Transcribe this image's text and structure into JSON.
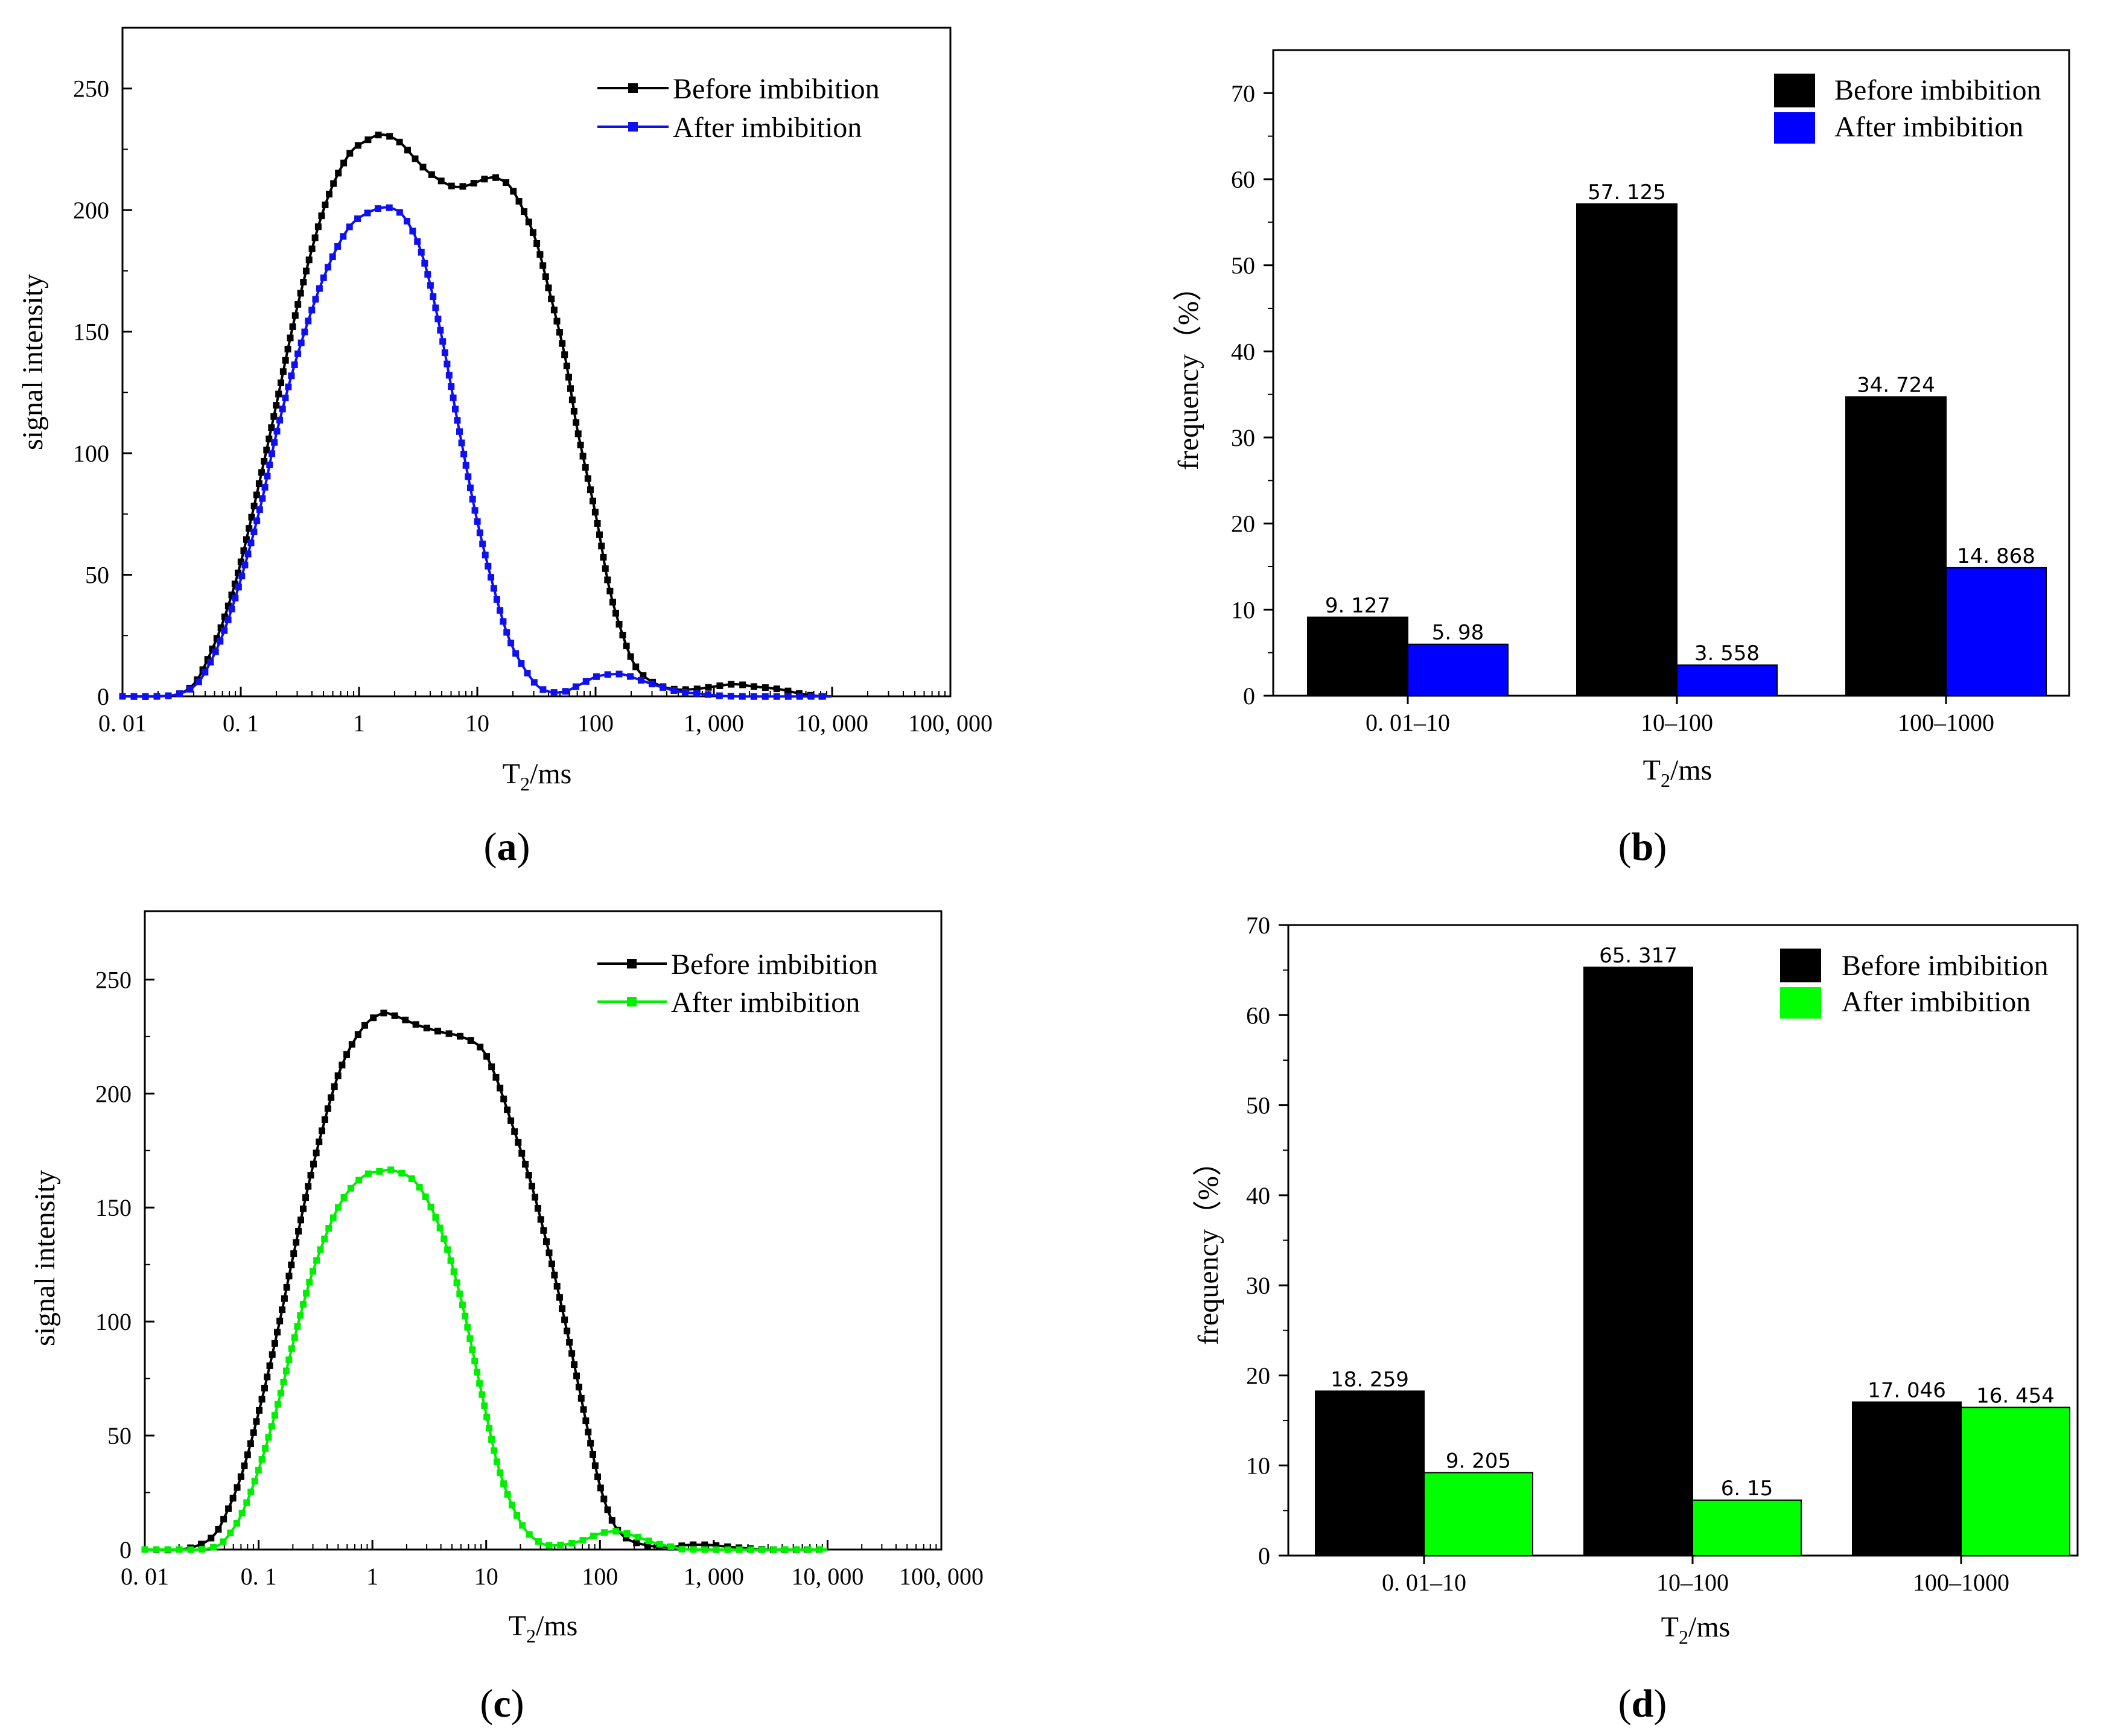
{
  "chart_data": [
    {
      "id": "a",
      "type": "line",
      "caption": "a",
      "xlabel_main": "T",
      "xlabel_sub": "2",
      "xlabel_unit": "/ms",
      "ylabel": "signal intensity",
      "xscale": "log",
      "xlim": [
        0.01,
        100000
      ],
      "ylim": [
        0,
        275
      ],
      "xticks": [
        {
          "v": 0.01,
          "label": "0. 01"
        },
        {
          "v": 0.1,
          "label": "0. 1"
        },
        {
          "v": 1,
          "label": "1"
        },
        {
          "v": 10,
          "label": "10"
        },
        {
          "v": 100,
          "label": "100"
        },
        {
          "v": 1000,
          "label": "1, 000"
        },
        {
          "v": 10000,
          "label": "10, 000"
        },
        {
          "v": 100000,
          "label": "100, 000"
        }
      ],
      "yticks": [
        0,
        50,
        100,
        150,
        200,
        250
      ],
      "legend": [
        "Before imbibition",
        "After  imbibition"
      ],
      "series": [
        {
          "name": "Before imbibition",
          "color": "#000000",
          "points": [
            [
              0.01,
              0
            ],
            [
              0.02,
              0
            ],
            [
              0.03,
              1
            ],
            [
              0.04,
              5
            ],
            [
              0.05,
              13
            ],
            [
              0.07,
              30
            ],
            [
              0.1,
              55
            ],
            [
              0.15,
              92
            ],
            [
              0.2,
              120
            ],
            [
              0.3,
              160
            ],
            [
              0.5,
              200
            ],
            [
              0.8,
              222
            ],
            [
              1.2,
              229
            ],
            [
              1.6,
              231
            ],
            [
              2.2,
              228
            ],
            [
              3,
              221
            ],
            [
              4,
              215
            ],
            [
              6,
              210
            ],
            [
              8,
              210
            ],
            [
              12,
              213
            ],
            [
              15,
              213
            ],
            [
              20,
              208
            ],
            [
              30,
              190
            ],
            [
              40,
              168
            ],
            [
              55,
              140
            ],
            [
              70,
              110
            ],
            [
              100,
              75
            ],
            [
              130,
              45
            ],
            [
              170,
              25
            ],
            [
              220,
              12
            ],
            [
              300,
              6
            ],
            [
              450,
              3
            ],
            [
              700,
              3
            ],
            [
              1000,
              4
            ],
            [
              1500,
              5
            ],
            [
              2200,
              4
            ],
            [
              3500,
              3
            ],
            [
              5500,
              1
            ],
            [
              8000,
              0
            ],
            [
              10000,
              0
            ]
          ]
        },
        {
          "name": "After  imbibition",
          "color": "#1010ee",
          "points": [
            [
              0.01,
              0
            ],
            [
              0.02,
              0
            ],
            [
              0.03,
              1
            ],
            [
              0.04,
              4
            ],
            [
              0.05,
              10
            ],
            [
              0.07,
              25
            ],
            [
              0.1,
              48
            ],
            [
              0.15,
              80
            ],
            [
              0.2,
              108
            ],
            [
              0.3,
              140
            ],
            [
              0.5,
              172
            ],
            [
              0.8,
              192
            ],
            [
              1.2,
              199
            ],
            [
              1.8,
              201
            ],
            [
              2.5,
              196
            ],
            [
              3.5,
              180
            ],
            [
              5,
              148
            ],
            [
              7,
              110
            ],
            [
              10,
              72
            ],
            [
              15,
              38
            ],
            [
              20,
              20
            ],
            [
              30,
              6
            ],
            [
              40,
              2
            ],
            [
              55,
              2
            ],
            [
              75,
              5
            ],
            [
              100,
              8
            ],
            [
              130,
              9
            ],
            [
              170,
              9
            ],
            [
              230,
              7
            ],
            [
              350,
              4
            ],
            [
              500,
              2
            ],
            [
              800,
              1
            ],
            [
              1500,
              0
            ],
            [
              10000,
              0
            ]
          ]
        }
      ]
    },
    {
      "id": "b",
      "type": "bar",
      "caption": "b",
      "xlabel_main": "T",
      "xlabel_sub": "2",
      "xlabel_unit": "/ms",
      "ylabel": "frequency（%）",
      "ylim": [
        0,
        75
      ],
      "yticks": [
        0,
        10,
        20,
        30,
        40,
        50,
        60,
        70
      ],
      "categories": [
        "0. 01–10",
        "10–100",
        "100–1000"
      ],
      "legend": [
        "Before imbibition",
        "After  imbibition"
      ],
      "series": [
        {
          "name": "Before imbibition",
          "color": "#000000",
          "values": [
            9.127,
            57.125,
            34.724
          ],
          "labels": [
            "9. 127",
            "57. 125",
            "34. 724"
          ]
        },
        {
          "name": "After  imbibition",
          "color": "#0000ff",
          "values": [
            5.98,
            3.558,
            14.868
          ],
          "labels": [
            "5. 98",
            "3. 558",
            "14. 868"
          ]
        }
      ]
    },
    {
      "id": "c",
      "type": "line",
      "caption": "c",
      "xlabel_main": "T",
      "xlabel_sub": "2",
      "xlabel_unit": "/ms",
      "ylabel": "signal intensity",
      "xscale": "log",
      "xlim": [
        0.01,
        100000
      ],
      "ylim": [
        0,
        280
      ],
      "xticks": [
        {
          "v": 0.01,
          "label": "0. 01"
        },
        {
          "v": 0.1,
          "label": "0. 1"
        },
        {
          "v": 1,
          "label": "1"
        },
        {
          "v": 10,
          "label": "10"
        },
        {
          "v": 100,
          "label": "100"
        },
        {
          "v": 1000,
          "label": "1, 000"
        },
        {
          "v": 10000,
          "label": "10, 000"
        },
        {
          "v": 100000,
          "label": "100, 000"
        }
      ],
      "yticks": [
        0,
        50,
        100,
        150,
        200,
        250
      ],
      "legend": [
        "Before imbibition",
        "After  imbibition"
      ],
      "series": [
        {
          "name": "Before imbibition",
          "color": "#000000",
          "points": [
            [
              0.01,
              0
            ],
            [
              0.02,
              0
            ],
            [
              0.03,
              2
            ],
            [
              0.04,
              6
            ],
            [
              0.05,
              14
            ],
            [
              0.07,
              32
            ],
            [
              0.1,
              60
            ],
            [
              0.15,
              98
            ],
            [
              0.2,
              128
            ],
            [
              0.3,
              168
            ],
            [
              0.5,
              208
            ],
            [
              0.8,
              228
            ],
            [
              1.2,
              235
            ],
            [
              1.6,
              234
            ],
            [
              2.5,
              230
            ],
            [
              4,
              227
            ],
            [
              6,
              225
            ],
            [
              9,
              220
            ],
            [
              12,
              208
            ],
            [
              16,
              190
            ],
            [
              25,
              160
            ],
            [
              40,
              120
            ],
            [
              60,
              80
            ],
            [
              80,
              50
            ],
            [
              100,
              28
            ],
            [
              130,
              12
            ],
            [
              170,
              5
            ],
            [
              250,
              2
            ],
            [
              400,
              1
            ],
            [
              600,
              2
            ],
            [
              900,
              2
            ],
            [
              1500,
              1
            ],
            [
              3000,
              0
            ],
            [
              10000,
              0
            ]
          ]
        },
        {
          "name": "After  imbibition",
          "color": "#00ee00",
          "points": [
            [
              0.01,
              0
            ],
            [
              0.02,
              0
            ],
            [
              0.03,
              0
            ],
            [
              0.04,
              1
            ],
            [
              0.05,
              4
            ],
            [
              0.07,
              15
            ],
            [
              0.1,
              35
            ],
            [
              0.15,
              65
            ],
            [
              0.2,
              90
            ],
            [
              0.3,
              122
            ],
            [
              0.5,
              150
            ],
            [
              0.8,
              163
            ],
            [
              1.2,
              166
            ],
            [
              1.6,
              166
            ],
            [
              2.5,
              160
            ],
            [
              4,
              140
            ],
            [
              6,
              110
            ],
            [
              9,
              70
            ],
            [
              13,
              35
            ],
            [
              20,
              12
            ],
            [
              30,
              3
            ],
            [
              45,
              2
            ],
            [
              70,
              4
            ],
            [
              100,
              7
            ],
            [
              140,
              8
            ],
            [
              200,
              6
            ],
            [
              300,
              3
            ],
            [
              450,
              1
            ],
            [
              700,
              0
            ],
            [
              10000,
              0
            ]
          ]
        }
      ]
    },
    {
      "id": "d",
      "type": "bar",
      "caption": "d",
      "xlabel_main": "T",
      "xlabel_sub": "2",
      "xlabel_unit": "/ms",
      "ylabel": "frequency（%）",
      "ylim": [
        0,
        70
      ],
      "yticks": [
        0,
        10,
        20,
        30,
        40,
        50,
        60,
        70
      ],
      "categories": [
        "0. 01–10",
        "10–100",
        "100–1000"
      ],
      "legend": [
        "Before imbibition",
        "After  imbibition"
      ],
      "series": [
        {
          "name": "Before imbibition",
          "color": "#000000",
          "values": [
            18.259,
            65.317,
            17.046
          ],
          "labels": [
            "18. 259",
            "65. 317",
            "17. 046"
          ]
        },
        {
          "name": "After  imbibition",
          "color": "#00ff00",
          "values": [
            9.205,
            6.15,
            16.454
          ],
          "labels": [
            "9. 205",
            "6. 15",
            "16. 454"
          ]
        }
      ]
    }
  ]
}
